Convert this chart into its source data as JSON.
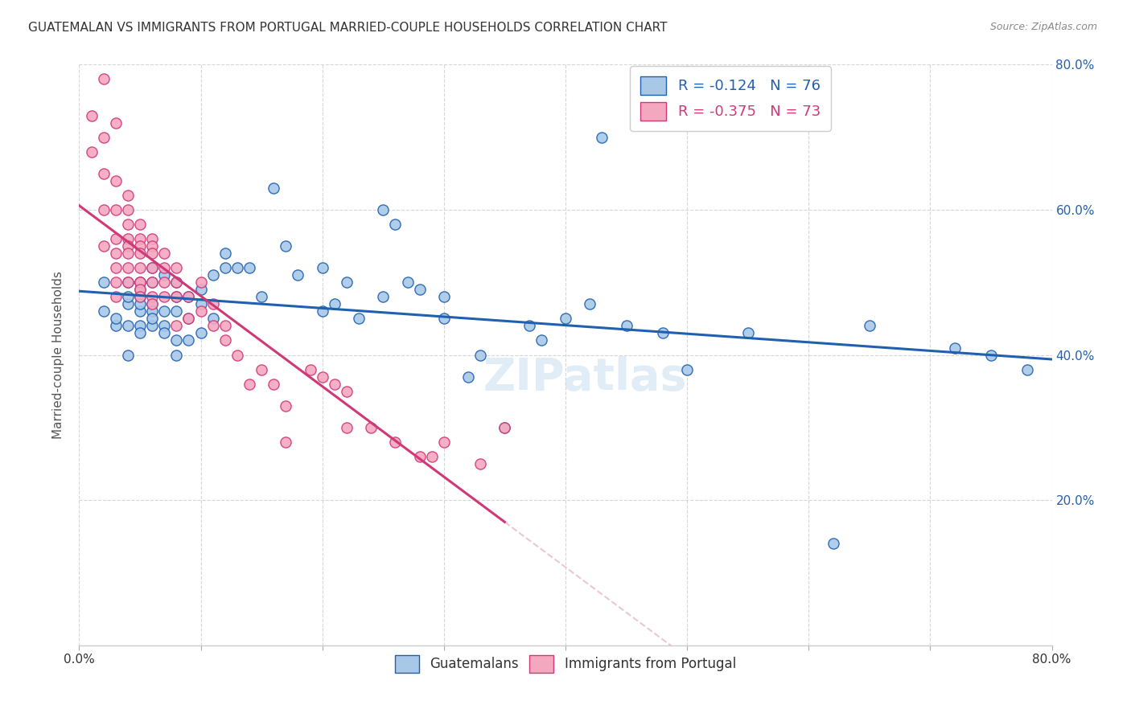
{
  "title": "GUATEMALAN VS IMMIGRANTS FROM PORTUGAL MARRIED-COUPLE HOUSEHOLDS CORRELATION CHART",
  "source": "Source: ZipAtlas.com",
  "ylabel": "Married-couple Households",
  "xmin": 0.0,
  "xmax": 0.8,
  "ymin": 0.0,
  "ymax": 0.8,
  "xtick_vals": [
    0.0,
    0.1,
    0.2,
    0.3,
    0.4,
    0.5,
    0.6,
    0.7,
    0.8
  ],
  "ytick_vals": [
    0.0,
    0.2,
    0.4,
    0.6,
    0.8
  ],
  "guatemalan_color": "#a8c8e8",
  "portugal_color": "#f4a8c0",
  "guatemalan_line_color": "#2060b0",
  "portugal_line_color": "#d03878",
  "diagonal_color": "#e8b8cc",
  "legend_R_guatemalan": "R = -0.124",
  "legend_N_guatemalan": "N = 76",
  "legend_R_portugal": "R = -0.375",
  "legend_N_portugal": "N = 73",
  "watermark": "ZIPatlas",
  "guatemalan_x": [
    0.02,
    0.02,
    0.03,
    0.03,
    0.04,
    0.04,
    0.04,
    0.04,
    0.04,
    0.05,
    0.05,
    0.05,
    0.05,
    0.05,
    0.05,
    0.05,
    0.06,
    0.06,
    0.06,
    0.06,
    0.06,
    0.06,
    0.07,
    0.07,
    0.07,
    0.07,
    0.08,
    0.08,
    0.08,
    0.08,
    0.08,
    0.09,
    0.09,
    0.09,
    0.1,
    0.1,
    0.1,
    0.11,
    0.11,
    0.12,
    0.12,
    0.13,
    0.14,
    0.15,
    0.16,
    0.17,
    0.18,
    0.2,
    0.2,
    0.21,
    0.22,
    0.23,
    0.25,
    0.25,
    0.26,
    0.27,
    0.28,
    0.3,
    0.3,
    0.32,
    0.33,
    0.35,
    0.37,
    0.38,
    0.4,
    0.42,
    0.43,
    0.45,
    0.48,
    0.5,
    0.55,
    0.62,
    0.65,
    0.72,
    0.75,
    0.78
  ],
  "guatemalan_y": [
    0.46,
    0.5,
    0.44,
    0.45,
    0.47,
    0.5,
    0.48,
    0.44,
    0.4,
    0.46,
    0.48,
    0.44,
    0.43,
    0.47,
    0.49,
    0.5,
    0.5,
    0.52,
    0.47,
    0.44,
    0.46,
    0.45,
    0.51,
    0.46,
    0.44,
    0.43,
    0.5,
    0.48,
    0.46,
    0.42,
    0.4,
    0.48,
    0.45,
    0.42,
    0.49,
    0.47,
    0.43,
    0.51,
    0.45,
    0.54,
    0.52,
    0.52,
    0.52,
    0.48,
    0.63,
    0.55,
    0.51,
    0.52,
    0.46,
    0.47,
    0.5,
    0.45,
    0.6,
    0.48,
    0.58,
    0.5,
    0.49,
    0.48,
    0.45,
    0.37,
    0.4,
    0.3,
    0.44,
    0.42,
    0.45,
    0.47,
    0.7,
    0.44,
    0.43,
    0.38,
    0.43,
    0.14,
    0.44,
    0.41,
    0.4,
    0.38
  ],
  "portugal_x": [
    0.01,
    0.01,
    0.02,
    0.02,
    0.02,
    0.02,
    0.02,
    0.03,
    0.03,
    0.03,
    0.03,
    0.03,
    0.03,
    0.03,
    0.03,
    0.04,
    0.04,
    0.04,
    0.04,
    0.04,
    0.04,
    0.04,
    0.04,
    0.05,
    0.05,
    0.05,
    0.05,
    0.05,
    0.05,
    0.05,
    0.05,
    0.05,
    0.06,
    0.06,
    0.06,
    0.06,
    0.06,
    0.06,
    0.06,
    0.07,
    0.07,
    0.07,
    0.07,
    0.08,
    0.08,
    0.08,
    0.08,
    0.09,
    0.09,
    0.1,
    0.1,
    0.11,
    0.11,
    0.12,
    0.12,
    0.13,
    0.14,
    0.15,
    0.16,
    0.17,
    0.17,
    0.19,
    0.2,
    0.21,
    0.22,
    0.22,
    0.24,
    0.26,
    0.28,
    0.29,
    0.3,
    0.33,
    0.35
  ],
  "portugal_y": [
    0.73,
    0.68,
    0.78,
    0.7,
    0.65,
    0.6,
    0.55,
    0.72,
    0.64,
    0.6,
    0.56,
    0.54,
    0.52,
    0.5,
    0.48,
    0.62,
    0.6,
    0.58,
    0.56,
    0.55,
    0.54,
    0.52,
    0.5,
    0.58,
    0.56,
    0.55,
    0.54,
    0.52,
    0.5,
    0.5,
    0.49,
    0.48,
    0.56,
    0.55,
    0.54,
    0.52,
    0.5,
    0.48,
    0.47,
    0.54,
    0.52,
    0.5,
    0.48,
    0.52,
    0.5,
    0.48,
    0.44,
    0.48,
    0.45,
    0.5,
    0.46,
    0.47,
    0.44,
    0.44,
    0.42,
    0.4,
    0.36,
    0.38,
    0.36,
    0.33,
    0.28,
    0.38,
    0.37,
    0.36,
    0.35,
    0.3,
    0.3,
    0.28,
    0.26,
    0.26,
    0.28,
    0.25,
    0.3
  ],
  "title_fontsize": 11,
  "axis_label_fontsize": 11,
  "tick_fontsize": 11,
  "legend_fontsize": 13,
  "watermark_fontsize": 40,
  "background_color": "#ffffff",
  "grid_color": "#cccccc",
  "right_tick_color": "#2060b0",
  "left_tick_color": "#2060b0"
}
